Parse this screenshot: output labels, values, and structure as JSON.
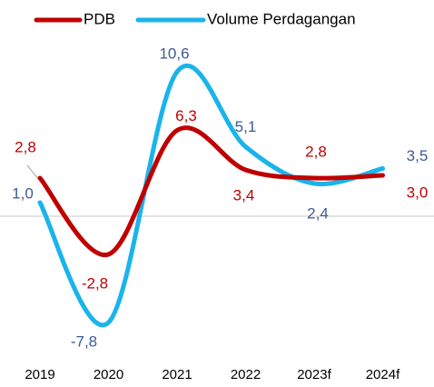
{
  "chart_data": {
    "type": "line",
    "categories": [
      "2019",
      "2020",
      "2021",
      "2022",
      "2023f",
      "2024f"
    ],
    "series": [
      {
        "name": "PDB",
        "color": "#c00000",
        "label_color": "#c00000",
        "values": [
          2.8,
          -2.8,
          6.3,
          3.4,
          2.8,
          3.0
        ],
        "value_labels": [
          "2,8",
          "-2,8",
          "6,3",
          "3,4",
          "2,8",
          "3,0"
        ]
      },
      {
        "name": "Volume Perdagangan",
        "color": "#1ab4ea",
        "label_color": "#3d5a99",
        "values": [
          1.0,
          -7.8,
          10.6,
          5.1,
          2.4,
          3.5
        ],
        "value_labels": [
          "1,0",
          "-7,8",
          "10,6",
          "5,1",
          "2,4",
          "3,5"
        ]
      }
    ],
    "ylim": [
      -9,
      12
    ],
    "smooth": true,
    "legend": "top"
  }
}
